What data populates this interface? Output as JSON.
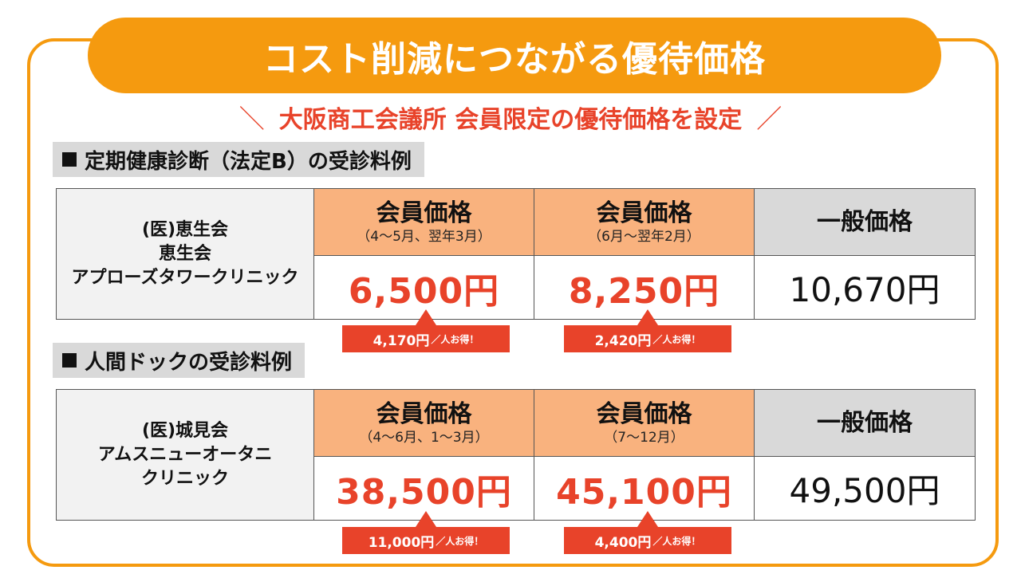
{
  "title": "コスト削減につながる優待価格",
  "subtitle": {
    "left_mark": "＼",
    "text": "大阪商工会議所 会員限定の優待価格を設定",
    "right_mark": "／"
  },
  "sections": [
    {
      "label": "定期健康診断（法定B）の受診料例",
      "clinic_lines": [
        "(医)恵生会",
        "恵生会",
        "アプローズタワークリニック"
      ],
      "columns": [
        {
          "title": "会員価格",
          "period": "（4～5月、翌年3月）",
          "price": "6,500円",
          "saving": "4,170円",
          "saving_suffix": "／人お得！"
        },
        {
          "title": "会員価格",
          "period": "（6月～翌年2月）",
          "price": "8,250円",
          "saving": "2,420円",
          "saving_suffix": "／人お得！"
        },
        {
          "title": "一般価格",
          "price": "10,670円"
        }
      ]
    },
    {
      "label": "人間ドックの受診料例",
      "clinic_lines": [
        "(医)城見会",
        "アムスニューオータニ",
        "クリニック"
      ],
      "columns": [
        {
          "title": "会員価格",
          "period": "（4～6月、1～3月）",
          "price": "38,500円",
          "saving": "11,000円",
          "saving_suffix": "／人お得！"
        },
        {
          "title": "会員価格",
          "period": "（7～12月）",
          "price": "45,100円",
          "saving": "4,400円",
          "saving_suffix": "／人お得！"
        },
        {
          "title": "一般価格",
          "price": "49,500円"
        }
      ]
    }
  ],
  "colors": {
    "accent_orange": "#f59a0f",
    "price_red": "#e8432a",
    "member_header": "#f9b27e",
    "general_header": "#d9d9d9"
  }
}
